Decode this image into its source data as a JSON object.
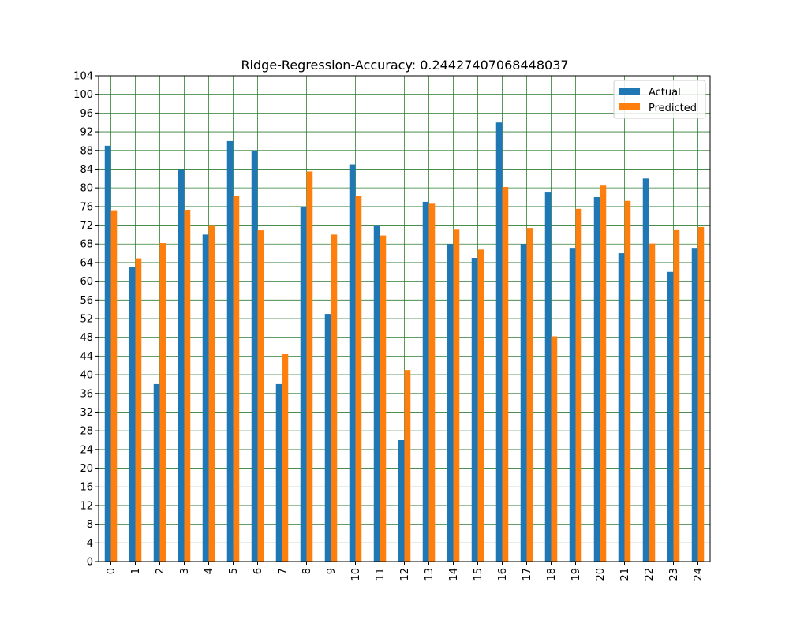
{
  "chart_data": {
    "type": "bar",
    "title": "Ridge-Regression-Accuracy: 0.24427407068448037",
    "xlabel": "",
    "ylabel": "",
    "categories": [
      "0",
      "1",
      "2",
      "3",
      "4",
      "5",
      "6",
      "7",
      "8",
      "9",
      "10",
      "11",
      "12",
      "13",
      "14",
      "15",
      "16",
      "17",
      "18",
      "19",
      "20",
      "21",
      "22",
      "23",
      "24"
    ],
    "series": [
      {
        "name": "Actual",
        "color": "#1f77b4",
        "values": [
          89,
          63,
          38,
          84,
          70,
          90,
          88,
          38,
          76,
          53,
          85,
          72,
          26,
          77,
          68,
          65,
          94,
          68,
          79,
          67,
          78,
          66,
          82,
          62,
          67
        ]
      },
      {
        "name": "Predicted",
        "color": "#ff7f0e",
        "values": [
          75.2,
          64.9,
          68.2,
          75.3,
          72.0,
          78.2,
          70.9,
          44.4,
          83.5,
          70.0,
          78.2,
          69.8,
          41.0,
          76.6,
          71.2,
          66.8,
          80.2,
          71.4,
          48.2,
          75.5,
          80.5,
          77.2,
          68.1,
          71.1,
          71.6
        ]
      }
    ],
    "ylim": [
      0,
      104
    ],
    "yticks": [
      0,
      4,
      8,
      12,
      16,
      20,
      24,
      28,
      32,
      36,
      40,
      44,
      48,
      52,
      56,
      60,
      64,
      68,
      72,
      76,
      80,
      84,
      88,
      92,
      96,
      100,
      104
    ],
    "grid": true,
    "grid_color": "#2e7d32",
    "legend_position": "top-right"
  }
}
